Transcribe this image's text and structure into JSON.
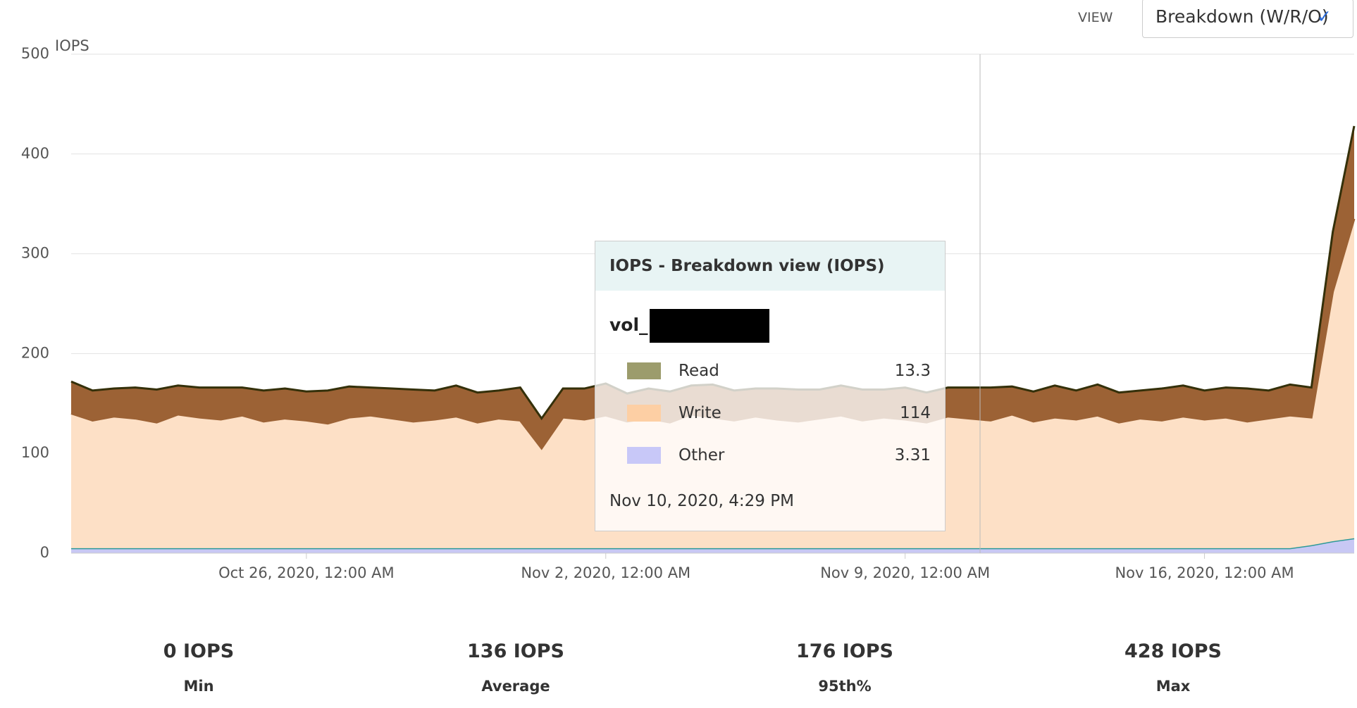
{
  "view": {
    "label": "VIEW",
    "selected": "Breakdown (W/R/O)"
  },
  "chart_data": {
    "type": "area",
    "stacked": true,
    "y_label": "IOPS",
    "x": [
      "2020-10-20T12:00Z",
      "2020-10-21T00:00Z",
      "2020-10-21T12:00Z",
      "2020-10-22T00:00Z",
      "2020-10-22T12:00Z",
      "2020-10-23T00:00Z",
      "2020-10-23T12:00Z",
      "2020-10-24T00:00Z",
      "2020-10-24T12:00Z",
      "2020-10-25T00:00Z",
      "2020-10-25T12:00Z",
      "2020-10-26T00:00Z",
      "2020-10-26T12:00Z",
      "2020-10-27T00:00Z",
      "2020-10-27T12:00Z",
      "2020-10-28T00:00Z",
      "2020-10-28T12:00Z",
      "2020-10-29T00:00Z",
      "2020-10-29T12:00Z",
      "2020-10-30T00:00Z",
      "2020-10-30T12:00Z",
      "2020-10-31T00:00Z",
      "2020-10-31T12:00Z",
      "2020-11-01T00:00Z",
      "2020-11-01T12:00Z",
      "2020-11-02T00:00Z",
      "2020-11-02T12:00Z",
      "2020-11-03T00:00Z",
      "2020-11-03T12:00Z",
      "2020-11-04T00:00Z",
      "2020-11-04T12:00Z",
      "2020-11-05T00:00Z",
      "2020-11-05T12:00Z",
      "2020-11-06T00:00Z",
      "2020-11-06T12:00Z",
      "2020-11-07T00:00Z",
      "2020-11-07T12:00Z",
      "2020-11-08T00:00Z",
      "2020-11-08T12:00Z",
      "2020-11-09T00:00Z",
      "2020-11-09T12:00Z",
      "2020-11-10T00:00Z",
      "2020-11-10T12:00Z",
      "2020-11-11T00:00Z",
      "2020-11-11T12:00Z",
      "2020-11-12T00:00Z",
      "2020-11-12T12:00Z",
      "2020-11-13T00:00Z",
      "2020-11-13T12:00Z",
      "2020-11-14T00:00Z",
      "2020-11-14T12:00Z",
      "2020-11-15T00:00Z",
      "2020-11-15T12:00Z",
      "2020-11-16T00:00Z",
      "2020-11-16T12:00Z",
      "2020-11-17T00:00Z",
      "2020-11-17T12:00Z",
      "2020-11-18T00:00Z",
      "2020-11-18T12:00Z",
      "2020-11-19T00:00Z",
      "2020-11-19T12:00Z"
    ],
    "series": [
      {
        "name": "Other",
        "color": "#c8c8f4",
        "line": "#2e9a98",
        "values": [
          5,
          5,
          5,
          5,
          5,
          5,
          5,
          5,
          5,
          5,
          5,
          5,
          5,
          5,
          5,
          5,
          5,
          5,
          5,
          5,
          5,
          5,
          5,
          5,
          5,
          5,
          5,
          5,
          5,
          5,
          5,
          5,
          5,
          5,
          5,
          5,
          5,
          5,
          5,
          5,
          5,
          5,
          5,
          5,
          5,
          5,
          5,
          5,
          5,
          5,
          5,
          5,
          5,
          5,
          5,
          5,
          5,
          5,
          8,
          12,
          15
        ]
      },
      {
        "name": "Write",
        "color": "#fde0c6",
        "line": "#9c6235",
        "values": [
          135,
          128,
          132,
          130,
          126,
          134,
          131,
          129,
          133,
          127,
          130,
          128,
          125,
          131,
          133,
          130,
          127,
          129,
          132,
          126,
          130,
          128,
          100,
          131,
          129,
          133,
          127,
          130,
          126,
          134,
          131,
          128,
          132,
          129,
          127,
          130,
          133,
          128,
          131,
          129,
          126,
          132,
          130,
          128,
          134,
          127,
          131,
          129,
          133,
          126,
          130,
          128,
          132,
          129,
          131,
          127,
          130,
          133,
          128,
          250,
          320
        ]
      },
      {
        "name": "Read",
        "color": "#9c6235",
        "line": "#34300a",
        "values": [
          32,
          30,
          28,
          31,
          33,
          29,
          30,
          32,
          28,
          31,
          30,
          29,
          33,
          31,
          28,
          30,
          32,
          29,
          31,
          30,
          28,
          33,
          30,
          29,
          31,
          32,
          28,
          30,
          31,
          29,
          33,
          30,
          28,
          31,
          32,
          29,
          30,
          31,
          28,
          32,
          30,
          29,
          31,
          33,
          28,
          30,
          32,
          29,
          31,
          30,
          28,
          32,
          31,
          29,
          30,
          33,
          28,
          31,
          30,
          60,
          93
        ]
      }
    ],
    "xlim": [
      "2020-10-20T12:00Z",
      "2020-11-19T12:00Z"
    ],
    "xticks": [
      {
        "value": "2020-10-26T00:00Z",
        "label": "Oct 26, 2020, 12:00 AM"
      },
      {
        "value": "2020-11-02T00:00Z",
        "label": "Nov 2, 2020, 12:00 AM"
      },
      {
        "value": "2020-11-09T00:00Z",
        "label": "Nov 9, 2020, 12:00 AM"
      },
      {
        "value": "2020-11-16T00:00Z",
        "label": "Nov 16, 2020, 12:00 AM"
      }
    ],
    "ylim": [
      0,
      500
    ],
    "yticks": [
      0,
      100,
      200,
      300,
      400,
      500
    ],
    "grid": true
  },
  "tooltip": {
    "title": "IOPS - Breakdown view (IOPS)",
    "volume": "vol_",
    "rows": [
      {
        "name": "Read",
        "color": "#9c9c6c",
        "value": "13.3"
      },
      {
        "name": "Write",
        "color": "#fdcfa4",
        "value": "114"
      },
      {
        "name": "Other",
        "color": "#c8c8f8",
        "value": "3.31"
      }
    ],
    "time": "Nov 10, 2020, 4:29 PM"
  },
  "stats": [
    {
      "value": "0 IOPS",
      "label": "Min"
    },
    {
      "value": "136 IOPS",
      "label": "Average"
    },
    {
      "value": "176 IOPS",
      "label": "95th%"
    },
    {
      "value": "428 IOPS",
      "label": "Max"
    }
  ]
}
